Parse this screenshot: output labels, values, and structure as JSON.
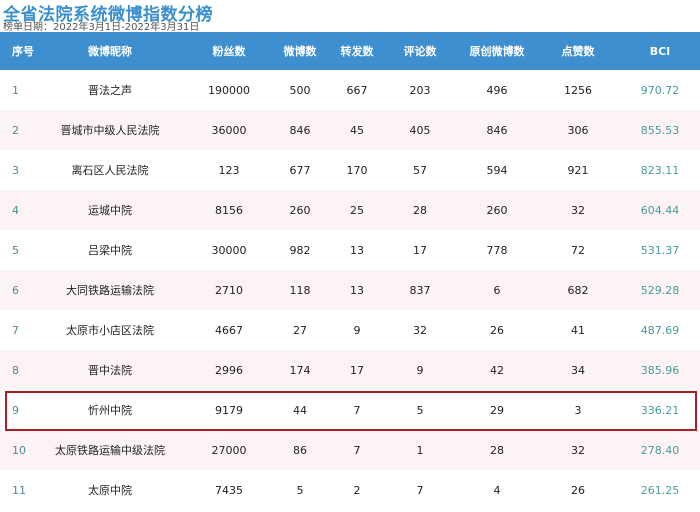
{
  "title": "全省法院系统微博指数分榜",
  "date_range": "榜单日期：2022年3月1日-2022年3月31日",
  "colors": {
    "header_bg": "#3d8fd0",
    "title": "#3a8fcf",
    "highlight_border": "#b01e23",
    "bci_text": "#4a9a9e"
  },
  "columns": [
    "序号",
    "微博昵称",
    "粉丝数",
    "微博数",
    "转发数",
    "评论数",
    "原创微博数",
    "点赞数",
    "BCI"
  ],
  "rows": [
    [
      "1",
      "晋法之声",
      "190000",
      "500",
      "667",
      "203",
      "496",
      "1256",
      "970.72"
    ],
    [
      "2",
      "晋城市中级人民法院",
      "36000",
      "846",
      "45",
      "405",
      "846",
      "306",
      "855.53"
    ],
    [
      "3",
      "离石区人民法院",
      "123",
      "677",
      "170",
      "57",
      "594",
      "921",
      "823.11"
    ],
    [
      "4",
      "运城中院",
      "8156",
      "260",
      "25",
      "28",
      "260",
      "32",
      "604.44"
    ],
    [
      "5",
      "吕梁中院",
      "30000",
      "982",
      "13",
      "17",
      "778",
      "72",
      "531.37"
    ],
    [
      "6",
      "大同铁路运输法院",
      "2710",
      "118",
      "13",
      "837",
      "6",
      "682",
      "529.28"
    ],
    [
      "7",
      "太原市小店区法院",
      "4667",
      "27",
      "9",
      "32",
      "26",
      "41",
      "487.69"
    ],
    [
      "8",
      "晋中法院",
      "2996",
      "174",
      "17",
      "9",
      "42",
      "34",
      "385.96"
    ],
    [
      "9",
      "忻州中院",
      "9179",
      "44",
      "7",
      "5",
      "29",
      "3",
      "336.21"
    ],
    [
      "10",
      "太原铁路运输中级法院",
      "27000",
      "86",
      "7",
      "1",
      "28",
      "32",
      "278.40"
    ],
    [
      "11",
      "太原中院",
      "7435",
      "5",
      "2",
      "7",
      "4",
      "26",
      "261.25"
    ]
  ],
  "highlighted_row": "9"
}
